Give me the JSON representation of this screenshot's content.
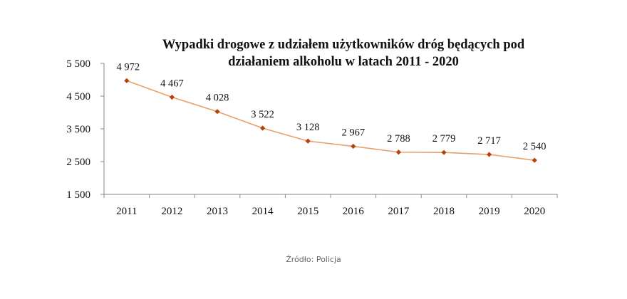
{
  "chart_data": {
    "type": "line",
    "title_line1": "Wypadki drogowe z udziałem użytkowników dróg będących pod",
    "title_line2": "działaniem alkoholu  w latach 2011 - 2020",
    "categories": [
      "2011",
      "2012",
      "2013",
      "2014",
      "2015",
      "2016",
      "2017",
      "2018",
      "2019",
      "2020"
    ],
    "values": [
      4972,
      4467,
      4028,
      3522,
      3128,
      2967,
      2788,
      2779,
      2717,
      2540
    ],
    "value_labels": [
      "4 972",
      "4 467",
      "4 028",
      "3 522",
      "3 128",
      "2 967",
      "2 788",
      "2 779",
      "2 717",
      "2 540"
    ],
    "y_ticks": [
      1500,
      2500,
      3500,
      4500,
      5500
    ],
    "y_tick_labels": [
      "1 500",
      "2 500",
      "3 500",
      "4 500",
      "5 500"
    ],
    "ylim": [
      1500,
      5500
    ],
    "xlabel": "",
    "ylabel": "",
    "grid": false,
    "legend": "none",
    "line_color": "#E8A06A",
    "marker_color": "#B5440C"
  },
  "source": "Źródło: Policja"
}
